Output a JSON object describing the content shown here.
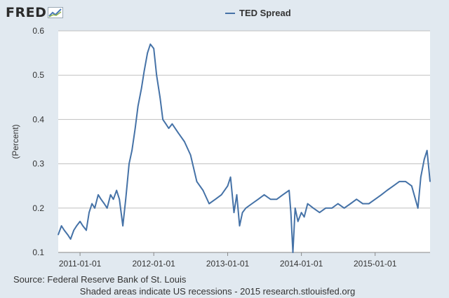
{
  "brand": {
    "logo_text": "FRED",
    "logo_icon": "trend-chart-icon"
  },
  "chart_data": {
    "type": "line",
    "title": "",
    "xlabel": "",
    "ylabel": "(Percent)",
    "ylim": [
      0.1,
      0.6
    ],
    "yticks": [
      "0.1",
      "0.2",
      "0.3",
      "0.4",
      "0.5",
      "0.6"
    ],
    "xlim": [
      "2010-09-15",
      "2015-09-30"
    ],
    "xticks": [
      "2011-01-01",
      "2012-01-01",
      "2013-01-01",
      "2014-01-01",
      "2015-01-01"
    ],
    "grid": "horizontal",
    "legend_position": "top-center",
    "series": [
      {
        "name": "TED Spread",
        "color": "#4572a7",
        "x": [
          "2010-09-15",
          "2010-10-01",
          "2010-10-15",
          "2010-11-01",
          "2010-11-15",
          "2010-12-01",
          "2010-12-15",
          "2011-01-01",
          "2011-01-15",
          "2011-02-01",
          "2011-02-15",
          "2011-03-01",
          "2011-03-15",
          "2011-04-01",
          "2011-04-15",
          "2011-05-01",
          "2011-05-15",
          "2011-06-01",
          "2011-06-15",
          "2011-07-01",
          "2011-07-15",
          "2011-08-01",
          "2011-08-15",
          "2011-09-01",
          "2011-09-15",
          "2011-10-01",
          "2011-10-15",
          "2011-11-01",
          "2011-11-15",
          "2011-12-01",
          "2011-12-15",
          "2012-01-01",
          "2012-01-15",
          "2012-02-01",
          "2012-02-15",
          "2012-03-01",
          "2012-03-15",
          "2012-04-01",
          "2012-05-01",
          "2012-06-01",
          "2012-07-01",
          "2012-08-01",
          "2012-09-01",
          "2012-10-01",
          "2012-11-01",
          "2012-12-01",
          "2013-01-01",
          "2013-01-15",
          "2013-02-01",
          "2013-02-15",
          "2013-03-01",
          "2013-03-15",
          "2013-04-01",
          "2013-05-01",
          "2013-06-01",
          "2013-07-01",
          "2013-08-01",
          "2013-09-01",
          "2013-10-01",
          "2013-11-01",
          "2013-11-10",
          "2013-11-20",
          "2013-12-01",
          "2013-12-15",
          "2014-01-01",
          "2014-01-15",
          "2014-02-01",
          "2014-03-01",
          "2014-04-01",
          "2014-05-01",
          "2014-06-01",
          "2014-07-01",
          "2014-08-01",
          "2014-09-01",
          "2014-10-01",
          "2014-11-01",
          "2014-12-01",
          "2015-01-01",
          "2015-02-01",
          "2015-03-01",
          "2015-04-01",
          "2015-05-01",
          "2015-06-01",
          "2015-07-01",
          "2015-08-01",
          "2015-08-15",
          "2015-09-01",
          "2015-09-15",
          "2015-09-30"
        ],
        "values": [
          0.14,
          0.16,
          0.15,
          0.14,
          0.13,
          0.15,
          0.16,
          0.17,
          0.16,
          0.15,
          0.19,
          0.21,
          0.2,
          0.23,
          0.22,
          0.21,
          0.2,
          0.23,
          0.22,
          0.24,
          0.22,
          0.16,
          0.22,
          0.3,
          0.33,
          0.38,
          0.43,
          0.47,
          0.51,
          0.55,
          0.57,
          0.56,
          0.5,
          0.45,
          0.4,
          0.39,
          0.38,
          0.39,
          0.37,
          0.35,
          0.32,
          0.26,
          0.24,
          0.21,
          0.22,
          0.23,
          0.25,
          0.27,
          0.19,
          0.23,
          0.16,
          0.19,
          0.2,
          0.21,
          0.22,
          0.23,
          0.22,
          0.22,
          0.23,
          0.24,
          0.19,
          0.1,
          0.2,
          0.17,
          0.19,
          0.18,
          0.21,
          0.2,
          0.19,
          0.2,
          0.2,
          0.21,
          0.2,
          0.21,
          0.22,
          0.21,
          0.21,
          0.22,
          0.23,
          0.24,
          0.25,
          0.26,
          0.26,
          0.25,
          0.2,
          0.27,
          0.31,
          0.33,
          0.26
        ]
      }
    ],
    "source": "Source: Federal Reserve Bank of St. Louis",
    "note": "Shaded areas indicate US recessions - 2015 research.stlouisfed.org"
  }
}
